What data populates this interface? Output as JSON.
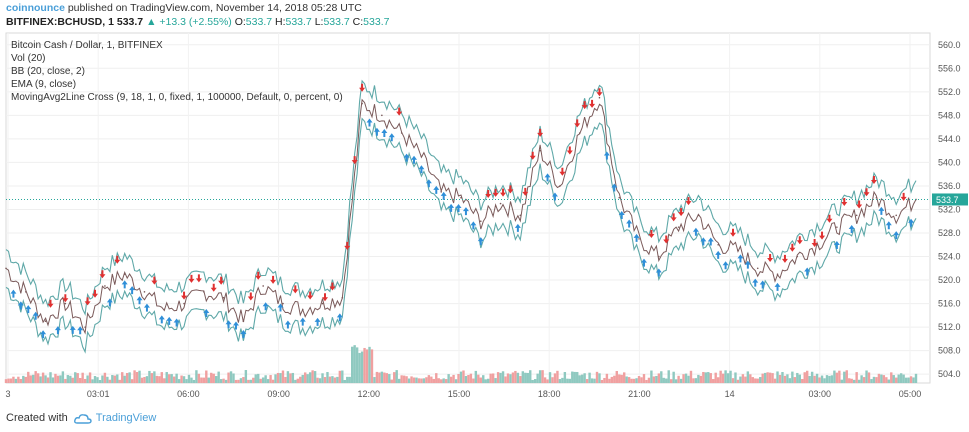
{
  "header": {
    "brand": "coinnounce",
    "published": "published on TradingView.com, November 14, 2018 05:28 UTC",
    "symbol": "BITFINEX:BCHUSD, 1",
    "last": "533.7",
    "change": "+13.3 (+2.55%)",
    "ohlc_o_label": "O:",
    "ohlc_o": "533.7",
    "ohlc_h_label": "H:",
    "ohlc_h": "533.7",
    "ohlc_l_label": "L:",
    "ohlc_l": "533.7",
    "ohlc_c_label": "C:",
    "ohlc_c": "533.7"
  },
  "legend": {
    "title": "Bitcoin Cash / Dollar, 1, BITFINEX",
    "vol": "Vol (20)",
    "bb": "BB (20, close, 2)",
    "ema": "EMA (9, close)",
    "ma_cross": "MovingAvg2Line Cross (9, 18, 1, 0, fixed, 1, 100000, Default, 0, percent, 0)"
  },
  "footer": {
    "created": "Created with",
    "tv": "TradingView"
  },
  "colors": {
    "price_line": "#7a5a5a",
    "band": "#5fa8a8",
    "up_arrow": "#2f8fd8",
    "down_arrow": "#e03030",
    "current": "#26a69a",
    "vol_up": "#8fc9c0",
    "vol_down": "#f0a0a0"
  },
  "chart_data": {
    "type": "line",
    "title": "Bitcoin Cash / Dollar, 1, BITFINEX",
    "xlabel": "",
    "ylabel": "",
    "x_ticks": [
      "3",
      "03:01",
      "06:00",
      "09:00",
      "12:00",
      "15:00",
      "18:00",
      "21:00",
      "14",
      "03:00",
      "05:00"
    ],
    "y_ticks": [
      504.0,
      508.0,
      512.0,
      516.0,
      520.0,
      524.0,
      528.0,
      532.0,
      536.0,
      540.0,
      544.0,
      548.0,
      552.0,
      556.0,
      560.0
    ],
    "ylim": [
      502.5,
      562
    ],
    "current_value": "533.7",
    "series": [
      {
        "name": "BCHUSD",
        "x": [
          0,
          20,
          40,
          60,
          80,
          100,
          120,
          140,
          160,
          180,
          200,
          220,
          240,
          260,
          280,
          300,
          320,
          340,
          360,
          380,
          400,
          420,
          440,
          460,
          480,
          500,
          520,
          540,
          560,
          580,
          600,
          620,
          640,
          660,
          680,
          700,
          720,
          740,
          760,
          780,
          800,
          820,
          840,
          860,
          880,
          900,
          920
        ],
        "y": [
          522,
          518,
          513,
          516,
          512,
          519,
          521,
          518,
          515,
          516,
          518,
          517,
          513,
          519,
          516,
          515,
          516,
          517,
          550,
          548,
          545,
          541,
          535,
          534,
          530,
          533,
          531,
          542,
          536,
          545,
          551,
          534,
          527,
          524,
          529,
          531,
          526,
          525,
          522,
          521,
          524,
          526,
          529,
          531,
          534,
          531,
          533.7
        ]
      }
    ]
  }
}
